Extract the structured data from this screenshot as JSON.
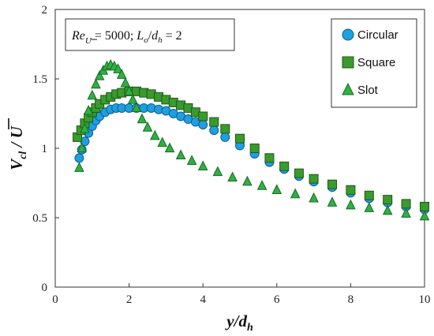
{
  "chart_data": {
    "type": "scatter",
    "annotation": "Re_U = 5000; L_o/d_h = 2",
    "annotation_parts": {
      "re": "Re",
      "re_sub": "U",
      "re_value": " = 5000; ",
      "lo": "L",
      "lo_sub": "o",
      "slash": "/",
      "dh": "d",
      "dh_sub": "h",
      "lo_value": " = 2"
    },
    "xlabel": "y/d_h",
    "xlabel_parts": {
      "main": "y",
      "slash": "/",
      "d": "d",
      "sub": "h"
    },
    "ylabel": "V_cl / U",
    "ylabel_parts": {
      "main": "V",
      "sub": "cl",
      "slash": " / ",
      "u": "U"
    },
    "xlim": [
      0,
      10
    ],
    "ylim": [
      0,
      2
    ],
    "x_ticks": [
      0,
      2,
      4,
      6,
      8,
      10
    ],
    "y_ticks": [
      0,
      0.5,
      1,
      1.5,
      2
    ],
    "x_tick_labels": [
      "0",
      "2",
      "4",
      "6",
      "8",
      "10"
    ],
    "y_tick_labels": [
      "0",
      "0.5",
      "1",
      "1.5",
      "2"
    ],
    "grid": false,
    "legend_position": "top-right",
    "series": [
      {
        "name": "Circular",
        "marker": "circle",
        "fill": "#1f9fe0",
        "stroke": "#0b5f93",
        "x": [
          0.65,
          0.72,
          0.8,
          0.9,
          1.0,
          1.1,
          1.2,
          1.35,
          1.5,
          1.65,
          1.8,
          2.0,
          2.2,
          2.4,
          2.6,
          2.8,
          3.0,
          3.2,
          3.4,
          3.6,
          3.8,
          4.0,
          4.3,
          4.6,
          5.0,
          5.4,
          5.8,
          6.2,
          6.6,
          7.0,
          7.5,
          8.0,
          8.5,
          9.0,
          9.5,
          10.0
        ],
        "y": [
          0.93,
          0.99,
          1.05,
          1.11,
          1.16,
          1.2,
          1.23,
          1.26,
          1.28,
          1.29,
          1.29,
          1.29,
          1.29,
          1.29,
          1.29,
          1.28,
          1.27,
          1.25,
          1.23,
          1.21,
          1.19,
          1.17,
          1.13,
          1.08,
          1.02,
          0.96,
          0.9,
          0.85,
          0.8,
          0.76,
          0.72,
          0.68,
          0.64,
          0.61,
          0.58,
          0.56
        ]
      },
      {
        "name": "Square",
        "marker": "square",
        "fill": "#3a9a2e",
        "stroke": "#1d5a15",
        "x": [
          0.6,
          0.7,
          0.8,
          0.9,
          1.0,
          1.1,
          1.2,
          1.35,
          1.5,
          1.65,
          1.8,
          2.0,
          2.2,
          2.4,
          2.6,
          2.8,
          3.0,
          3.2,
          3.4,
          3.6,
          3.8,
          4.0,
          4.3,
          4.6,
          5.0,
          5.4,
          5.8,
          6.2,
          6.6,
          7.0,
          7.5,
          8.0,
          8.5,
          9.0,
          9.5,
          10.0
        ],
        "y": [
          1.08,
          1.13,
          1.18,
          1.22,
          1.26,
          1.29,
          1.32,
          1.35,
          1.37,
          1.39,
          1.4,
          1.41,
          1.41,
          1.4,
          1.39,
          1.37,
          1.35,
          1.33,
          1.31,
          1.29,
          1.26,
          1.23,
          1.19,
          1.14,
          1.07,
          1.0,
          0.93,
          0.87,
          0.82,
          0.78,
          0.74,
          0.7,
          0.66,
          0.63,
          0.6,
          0.58
        ]
      },
      {
        "name": "Slot",
        "marker": "triangle",
        "fill": "#2fb043",
        "stroke": "#146b22",
        "x": [
          0.65,
          0.72,
          0.8,
          0.9,
          1.0,
          1.1,
          1.2,
          1.3,
          1.4,
          1.5,
          1.6,
          1.7,
          1.8,
          1.9,
          2.0,
          2.1,
          2.2,
          2.35,
          2.5,
          2.7,
          2.9,
          3.1,
          3.4,
          3.7,
          4.0,
          4.4,
          4.8,
          5.2,
          5.6,
          6.0,
          6.5,
          7.0,
          7.5,
          8.0,
          8.5,
          9.0,
          9.5,
          10.0
        ],
        "y": [
          0.86,
          1.0,
          1.14,
          1.27,
          1.38,
          1.46,
          1.52,
          1.56,
          1.59,
          1.6,
          1.59,
          1.57,
          1.53,
          1.47,
          1.41,
          1.35,
          1.29,
          1.21,
          1.15,
          1.09,
          1.04,
          1.0,
          0.95,
          0.91,
          0.87,
          0.83,
          0.79,
          0.76,
          0.73,
          0.7,
          0.67,
          0.64,
          0.61,
          0.59,
          0.57,
          0.55,
          0.53,
          0.51
        ]
      }
    ]
  }
}
